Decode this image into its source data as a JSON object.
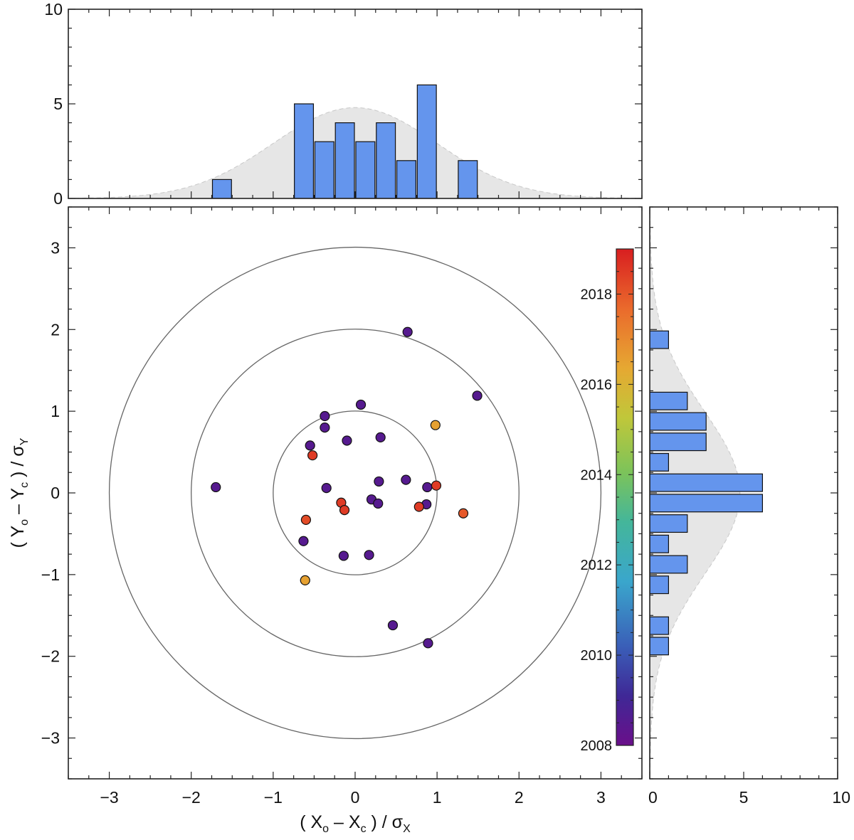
{
  "chart_data": [
    {
      "type": "scatter",
      "panel": "main",
      "xlabel_parts": {
        "open": "( X",
        "sub1": "o",
        "mid": " – X",
        "sub2": "c",
        "close": " ) / σ",
        "sub3": "X"
      },
      "ylabel_parts": {
        "open": "( Y",
        "sub1": "o",
        "mid": " – Y",
        "sub2": "c",
        "close": " ) / σ",
        "sub3": "Y"
      },
      "xlim": [
        -3.5,
        3.5
      ],
      "ylim": [
        -3.5,
        3.5
      ],
      "xticks": [
        "−3",
        "−2",
        "−1",
        "0",
        "1",
        "2",
        "3"
      ],
      "yticks": [
        "−3",
        "−2",
        "−1",
        "0",
        "1",
        "2",
        "3"
      ],
      "circles_radii": [
        1,
        2,
        3
      ],
      "color_by": "year",
      "colorbar": {
        "range": [
          2008,
          2019
        ],
        "ticks": [
          "2008",
          "2010",
          "2012",
          "2014",
          "2016",
          "2018"
        ]
      },
      "points": [
        {
          "x": -1.7,
          "y": 0.07,
          "year": 2008.5
        },
        {
          "x": -0.37,
          "y": 0.94,
          "year": 2008.5
        },
        {
          "x": -0.37,
          "y": 0.8,
          "year": 2008.5
        },
        {
          "x": -0.55,
          "y": 0.58,
          "year": 2008.5
        },
        {
          "x": -0.1,
          "y": 0.64,
          "year": 2008.5
        },
        {
          "x": 0.07,
          "y": 1.08,
          "year": 2008.5
        },
        {
          "x": 0.31,
          "y": 0.68,
          "year": 2008.5
        },
        {
          "x": 0.64,
          "y": 1.97,
          "year": 2008.5
        },
        {
          "x": 1.49,
          "y": 1.19,
          "year": 2008.5
        },
        {
          "x": -0.35,
          "y": 0.06,
          "year": 2008.5
        },
        {
          "x": 0.29,
          "y": 0.14,
          "year": 2008.5
        },
        {
          "x": 0.62,
          "y": 0.16,
          "year": 2008.5
        },
        {
          "x": 0.88,
          "y": 0.07,
          "year": 2008.5
        },
        {
          "x": 0.2,
          "y": -0.08,
          "year": 2008.5
        },
        {
          "x": 0.28,
          "y": -0.13,
          "year": 2008.5
        },
        {
          "x": 0.87,
          "y": -0.14,
          "year": 2008.5
        },
        {
          "x": -0.63,
          "y": -0.59,
          "year": 2008.5
        },
        {
          "x": -0.14,
          "y": -0.77,
          "year": 2008.5
        },
        {
          "x": 0.17,
          "y": -0.76,
          "year": 2008.5
        },
        {
          "x": 0.46,
          "y": -1.62,
          "year": 2008.5
        },
        {
          "x": 0.89,
          "y": -1.84,
          "year": 2008.5
        },
        {
          "x": -0.52,
          "y": 0.46,
          "year": 2018.5
        },
        {
          "x": -0.17,
          "y": -0.12,
          "year": 2018.5
        },
        {
          "x": -0.13,
          "y": -0.21,
          "year": 2018.5
        },
        {
          "x": -0.6,
          "y": -0.33,
          "year": 2018.2
        },
        {
          "x": 0.78,
          "y": -0.17,
          "year": 2018.5
        },
        {
          "x": 0.99,
          "y": 0.09,
          "year": 2018.5
        },
        {
          "x": 1.32,
          "y": -0.25,
          "year": 2018.0
        },
        {
          "x": 0.98,
          "y": 0.83,
          "year": 2016.5
        },
        {
          "x": -0.61,
          "y": -1.07,
          "year": 2016.5
        }
      ]
    },
    {
      "type": "bar",
      "panel": "top-histogram",
      "orientation": "vertical",
      "bin_width": 0.25,
      "bins": [
        {
          "from": -1.75,
          "to": -1.5,
          "count": 1
        },
        {
          "from": -0.75,
          "to": -0.5,
          "count": 5
        },
        {
          "from": -0.5,
          "to": -0.25,
          "count": 3
        },
        {
          "from": -0.25,
          "to": 0.0,
          "count": 4
        },
        {
          "from": 0.0,
          "to": 0.25,
          "count": 3
        },
        {
          "from": 0.25,
          "to": 0.5,
          "count": 4
        },
        {
          "from": 0.5,
          "to": 0.75,
          "count": 2
        },
        {
          "from": 0.75,
          "to": 1.0,
          "count": 6
        },
        {
          "from": 1.25,
          "to": 1.5,
          "count": 2
        }
      ],
      "ylim": [
        0,
        10
      ],
      "yticks": [
        "0",
        "5",
        "10"
      ],
      "gaussian_peak": 4.8,
      "gaussian_sigma": 1.0
    },
    {
      "type": "bar",
      "panel": "right-histogram",
      "orientation": "horizontal",
      "bin_width": 0.25,
      "bins": [
        {
          "from": 1.75,
          "to": 2.0,
          "count": 1
        },
        {
          "from": 1.0,
          "to": 1.25,
          "count": 2
        },
        {
          "from": 0.75,
          "to": 1.0,
          "count": 3
        },
        {
          "from": 0.5,
          "to": 0.75,
          "count": 3
        },
        {
          "from": 0.25,
          "to": 0.5,
          "count": 1
        },
        {
          "from": 0.0,
          "to": 0.25,
          "count": 6
        },
        {
          "from": -0.25,
          "to": 0.0,
          "count": 6
        },
        {
          "from": -0.5,
          "to": -0.25,
          "count": 2
        },
        {
          "from": -0.75,
          "to": -0.5,
          "count": 1
        },
        {
          "from": -1.0,
          "to": -0.75,
          "count": 2
        },
        {
          "from": -1.25,
          "to": -1.0,
          "count": 1
        },
        {
          "from": -1.75,
          "to": -1.5,
          "count": 1
        },
        {
          "from": -2.0,
          "to": -1.75,
          "count": 1
        }
      ],
      "xlim": [
        0,
        10
      ],
      "xticks": [
        "0",
        "5",
        "10"
      ],
      "gaussian_peak": 4.8,
      "gaussian_sigma": 1.0
    }
  ],
  "colors": {
    "bar_fill": "#6495ed",
    "bar_stroke": "#111111",
    "gaussian_fill": "#e6e6e6",
    "gaussian_stroke": "#c8c8c8",
    "circle_stroke": "#666666",
    "marker_stroke": "#111111"
  }
}
